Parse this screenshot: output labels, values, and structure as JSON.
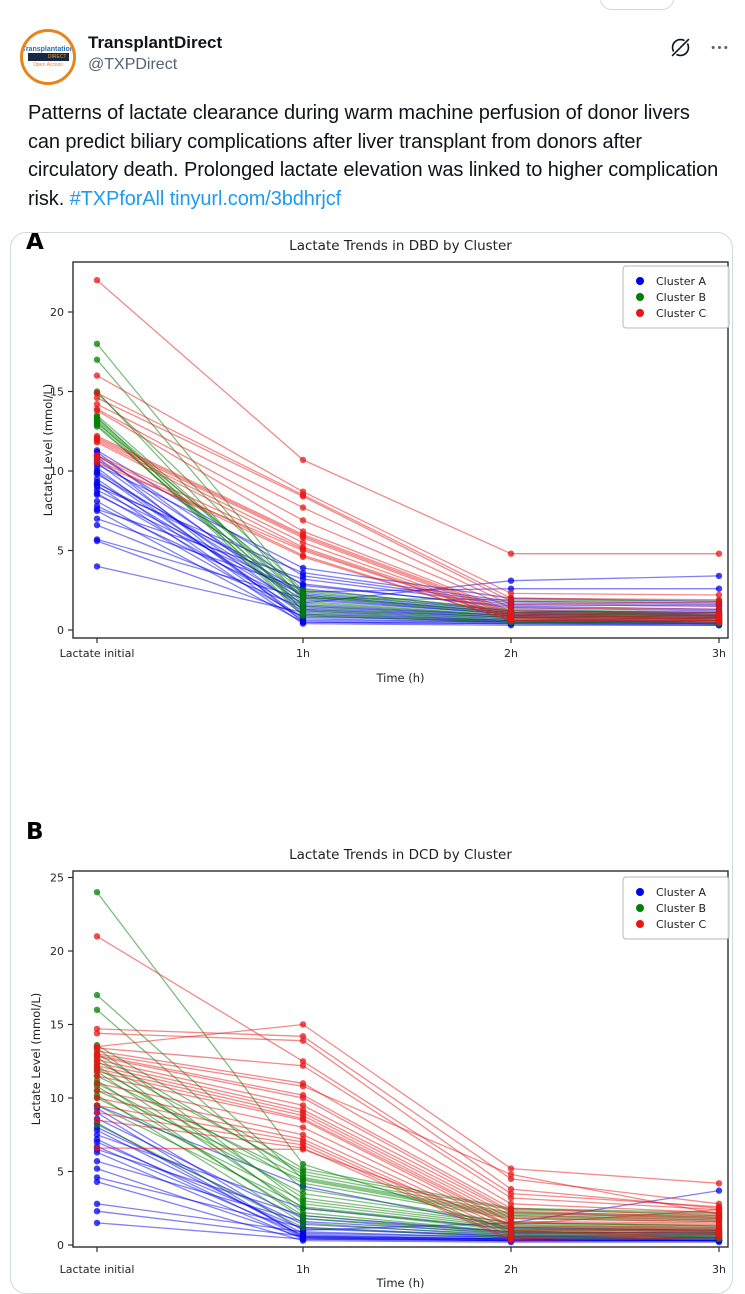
{
  "post": {
    "author": "TransplantDirect",
    "handle": "@TXPDirect",
    "avatar": {
      "line1": "Transplantation",
      "line2": "DIRECT",
      "line3": "Open Access"
    },
    "body_segments": [
      {
        "type": "plain",
        "name": "post-text-segment",
        "text": "Patterns of lactate clearance during warm machine perfusion of donor livers can predict biliary complications after liver transplant from donors after circulatory death. Prolonged lactate elevation was linked to higher complication risk. "
      },
      {
        "type": "link",
        "name": "hashtag-link",
        "text": "#TXPforAll"
      },
      {
        "type": "plain",
        "name": "post-text-segment",
        "text": " "
      },
      {
        "type": "link",
        "name": "url-link",
        "text": "tinyurl.com/3bdhrjcf"
      }
    ]
  },
  "colors": {
    "cluster_a": "#0000ee",
    "cluster_b": "#008000",
    "cluster_c": "#e81515",
    "link": "#1d9bf0",
    "text": "#0f1419",
    "secondary": "#536471",
    "card_border": "#cfd9de"
  },
  "chart_data": [
    {
      "type": "line",
      "panel_label": "A",
      "title": "Lactate Trends in DBD by Cluster",
      "xlabel": "Time (h)",
      "ylabel": "Lactate Level (mmol/L)",
      "categories": [
        "Lactate initial",
        "1h",
        "2h",
        "3h"
      ],
      "yticks": [
        0,
        5,
        10,
        15,
        20
      ],
      "ylim": [
        -0.5,
        23.1
      ],
      "grid": false,
      "legend": {
        "position": "upper right",
        "entries": [
          {
            "label": "Cluster A",
            "color": "#0000ee"
          },
          {
            "label": "Cluster B",
            "color": "#008000"
          },
          {
            "label": "Cluster C",
            "color": "#e81515"
          }
        ]
      },
      "series": [
        {
          "name": "Cluster A",
          "color": "#0000ee",
          "trajectories": [
            [
              4.0,
              1.1,
              0.6,
              0.5
            ],
            [
              5.6,
              0.9,
              0.5,
              0.4
            ],
            [
              5.7,
              2.0,
              1.0,
              0.9
            ],
            [
              6.6,
              1.4,
              0.8,
              0.7
            ],
            [
              7.0,
              2.6,
              1.2,
              1.1
            ],
            [
              7.5,
              0.5,
              0.4,
              0.3
            ],
            [
              7.6,
              3.2,
              1.6,
              1.5
            ],
            [
              7.8,
              1.7,
              3.1,
              3.4
            ],
            [
              8.1,
              0.8,
              0.6,
              0.5
            ],
            [
              8.5,
              2.2,
              1.1,
              1.0
            ],
            [
              8.6,
              1.2,
              0.7,
              0.6
            ],
            [
              9.0,
              3.6,
              1.8,
              1.7
            ],
            [
              9.1,
              0.4,
              0.3,
              0.3
            ],
            [
              9.2,
              2.9,
              1.4,
              1.2
            ],
            [
              9.3,
              1.5,
              0.9,
              0.8
            ],
            [
              9.5,
              0.6,
              0.5,
              0.4
            ],
            [
              9.8,
              2.4,
              2.6,
              2.6
            ],
            [
              10.0,
              1.9,
              1.0,
              0.9
            ],
            [
              10.2,
              0.7,
              0.5,
              0.5
            ],
            [
              10.4,
              3.9,
              2.0,
              1.8
            ],
            [
              10.5,
              1.3,
              0.8,
              0.7
            ],
            [
              10.7,
              2.1,
              1.1,
              1.0
            ],
            [
              10.9,
              0.5,
              0.4,
              0.4
            ],
            [
              11.0,
              2.8,
              1.5,
              1.3
            ],
            [
              11.2,
              1.6,
              0.9,
              0.8
            ],
            [
              11.3,
              3.4,
              1.7,
              1.6
            ],
            [
              9.9,
              1.0,
              0.6,
              0.6
            ],
            [
              8.8,
              2.3,
              1.2,
              1.1
            ]
          ]
        },
        {
          "name": "Cluster B",
          "color": "#008000",
          "trajectories": [
            [
              18.0,
              2.2,
              1.1,
              0.9
            ],
            [
              17.0,
              1.8,
              0.9,
              0.8
            ],
            [
              15.0,
              1.2,
              0.6,
              0.5
            ],
            [
              14.9,
              2.5,
              1.3,
              1.1
            ],
            [
              13.4,
              1.0,
              0.5,
              0.4
            ],
            [
              13.3,
              2.0,
              1.9,
              1.8
            ],
            [
              13.2,
              1.5,
              0.8,
              0.7
            ],
            [
              13.1,
              0.9,
              0.5,
              0.4
            ],
            [
              13.0,
              2.4,
              1.2,
              1.0
            ],
            [
              12.9,
              1.3,
              0.7,
              0.6
            ],
            [
              12.8,
              1.7,
              0.9,
              0.8
            ],
            [
              13.5,
              2.1,
              1.0,
              0.9
            ]
          ]
        },
        {
          "name": "Cluster C",
          "color": "#e81515",
          "trajectories": [
            [
              22.0,
              10.7,
              4.8,
              4.8
            ],
            [
              16.0,
              8.7,
              2.3,
              2.2
            ],
            [
              14.9,
              8.5,
              2.0,
              1.9
            ],
            [
              14.6,
              8.4,
              1.8,
              1.7
            ],
            [
              14.2,
              7.7,
              1.6,
              1.5
            ],
            [
              13.9,
              6.9,
              1.4,
              1.3
            ],
            [
              13.8,
              6.2,
              1.2,
              1.1
            ],
            [
              12.2,
              6.0,
              1.1,
              1.0
            ],
            [
              12.1,
              5.9,
              1.0,
              0.9
            ],
            [
              12.0,
              5.8,
              0.9,
              0.8
            ],
            [
              11.9,
              5.5,
              0.8,
              0.8
            ],
            [
              11.8,
              5.2,
              0.8,
              0.7
            ],
            [
              11.0,
              5.1,
              0.7,
              0.6
            ],
            [
              10.9,
              4.7,
              0.6,
              0.6
            ],
            [
              10.7,
              4.6,
              0.6,
              0.5
            ],
            [
              10.5,
              5.0,
              0.7,
              0.7
            ]
          ]
        }
      ]
    },
    {
      "type": "line",
      "panel_label": "B",
      "title": "Lactate Trends in DCD by Cluster",
      "xlabel": "Time (h)",
      "ylabel": "Lactate Level (mmol/L)",
      "categories": [
        "Lactate initial",
        "1h",
        "2h",
        "3h"
      ],
      "yticks": [
        0,
        5,
        10,
        15,
        20,
        25
      ],
      "ylim": [
        -0.2,
        25.4
      ],
      "grid": false,
      "legend": {
        "position": "upper right",
        "entries": [
          {
            "label": "Cluster A",
            "color": "#0000ee"
          },
          {
            "label": "Cluster B",
            "color": "#008000"
          },
          {
            "label": "Cluster C",
            "color": "#e81515"
          }
        ]
      },
      "series": [
        {
          "name": "Cluster A",
          "color": "#0000ee",
          "trajectories": [
            [
              1.5,
              0.4,
              0.3,
              0.3
            ],
            [
              2.3,
              0.6,
              0.4,
              0.3
            ],
            [
              2.8,
              0.9,
              0.5,
              0.4
            ],
            [
              4.3,
              0.3,
              0.2,
              0.2
            ],
            [
              4.6,
              1.2,
              0.6,
              0.5
            ],
            [
              5.2,
              0.5,
              0.3,
              0.3
            ],
            [
              5.7,
              1.6,
              0.8,
              0.7
            ],
            [
              6.3,
              0.4,
              0.3,
              0.3
            ],
            [
              6.5,
              2.0,
              0.9,
              0.8
            ],
            [
              6.7,
              0.7,
              0.4,
              0.4
            ],
            [
              7.0,
              1.1,
              0.6,
              0.5
            ],
            [
              7.2,
              0.5,
              0.3,
              0.3
            ],
            [
              7.5,
              2.5,
              1.1,
              1.0
            ],
            [
              7.8,
              0.8,
              0.5,
              0.4
            ],
            [
              8.0,
              1.4,
              0.7,
              0.6
            ],
            [
              8.3,
              0.6,
              0.4,
              0.3
            ],
            [
              8.6,
              1.8,
              0.9,
              0.8
            ],
            [
              9.0,
              0.5,
              0.4,
              0.3
            ],
            [
              9.3,
              1.0,
              1.5,
              3.7
            ],
            [
              9.5,
              4.0,
              1.2,
              1.0
            ]
          ]
        },
        {
          "name": "Cluster B",
          "color": "#008000",
          "trajectories": [
            [
              24.0,
              5.5,
              1.0,
              0.5
            ],
            [
              17.0,
              4.5,
              2.0,
              1.8
            ],
            [
              16.0,
              3.8,
              1.5,
              1.3
            ],
            [
              13.6,
              5.2,
              2.5,
              2.2
            ],
            [
              13.4,
              2.8,
              1.2,
              1.0
            ],
            [
              13.0,
              4.8,
              2.2,
              2.0
            ],
            [
              12.8,
              2.2,
              0.9,
              0.8
            ],
            [
              12.5,
              5.0,
              2.4,
              2.1
            ],
            [
              12.2,
              3.2,
              1.4,
              1.2
            ],
            [
              12.0,
              4.2,
              1.8,
              1.6
            ],
            [
              11.8,
              2.5,
              1.0,
              0.9
            ],
            [
              11.5,
              4.6,
              2.1,
              1.9
            ],
            [
              11.2,
              1.8,
              0.7,
              0.6
            ],
            [
              11.0,
              3.5,
              1.5,
              1.3
            ],
            [
              10.8,
              2.0,
              0.8,
              0.7
            ],
            [
              10.5,
              4.4,
              1.9,
              1.7
            ],
            [
              10.2,
              1.5,
              0.6,
              0.5
            ],
            [
              10.0,
              3.0,
              1.3,
              1.1
            ],
            [
              9.5,
              2.6,
              1.1,
              0.9
            ],
            [
              8.2,
              1.2,
              0.5,
              0.4
            ]
          ]
        },
        {
          "name": "Cluster C",
          "color": "#e81515",
          "trajectories": [
            [
              21.0,
              12.5,
              3.5,
              2.6
            ],
            [
              14.7,
              14.2,
              4.5,
              2.8
            ],
            [
              14.4,
              13.9,
              3.8,
              2.5
            ],
            [
              13.5,
              15.0,
              5.2,
              4.2
            ],
            [
              13.4,
              12.2,
              3.2,
              2.4
            ],
            [
              13.2,
              11.0,
              2.8,
              2.2
            ],
            [
              13.0,
              10.8,
              4.8,
              2.1
            ],
            [
              12.9,
              10.2,
              2.5,
              2.0
            ],
            [
              12.8,
              10.0,
              2.3,
              1.9
            ],
            [
              12.6,
              9.5,
              2.2,
              1.8
            ],
            [
              12.4,
              9.2,
              2.0,
              1.7
            ],
            [
              12.2,
              9.0,
              1.8,
              1.6
            ],
            [
              12.0,
              8.8,
              1.6,
              1.5
            ],
            [
              11.8,
              8.6,
              1.5,
              1.4
            ],
            [
              11.5,
              8.5,
              1.3,
              1.2
            ],
            [
              11.0,
              8.0,
              1.2,
              1.1
            ],
            [
              10.5,
              7.5,
              1.0,
              1.0
            ],
            [
              10.0,
              7.2,
              0.8,
              0.9
            ],
            [
              9.5,
              7.0,
              0.6,
              0.8
            ],
            [
              9.0,
              6.8,
              0.4,
              0.7
            ],
            [
              8.5,
              6.6,
              0.3,
              0.5
            ],
            [
              6.6,
              6.5,
              1.4,
              2.4
            ]
          ]
        }
      ]
    }
  ]
}
